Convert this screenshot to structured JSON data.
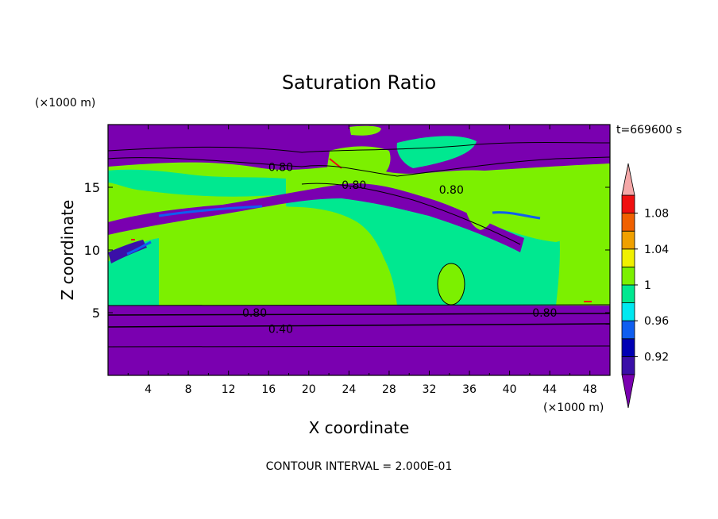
{
  "chart_data": {
    "type": "heatmap",
    "title": "Saturation Ratio",
    "xlabel": "X coordinate",
    "ylabel": "Z coordinate",
    "x_unit": "(×1000 m)",
    "y_unit": "(×1000 m)",
    "time_label": "t=669600 s",
    "footer": "CONTOUR INTERVAL = 2.000E-01",
    "xlim": [
      0,
      50
    ],
    "ylim": [
      0,
      20
    ],
    "x_ticks": [
      4,
      8,
      12,
      16,
      20,
      24,
      28,
      32,
      36,
      40,
      44,
      48
    ],
    "y_ticks": [
      5,
      10,
      15
    ],
    "contour_labels": [
      {
        "text": "0.80",
        "x": 17.2,
        "y": 16.6
      },
      {
        "text": "0.80",
        "x": 24.5,
        "y": 15.2
      },
      {
        "text": "0.80",
        "x": 34.2,
        "y": 14.8
      },
      {
        "text": "0.80",
        "x": 14.6,
        "y": 5.0
      },
      {
        "text": "0.80",
        "x": 43.5,
        "y": 5.0
      },
      {
        "text": "0.40",
        "x": 17.2,
        "y": 3.7
      }
    ],
    "colorbar": {
      "levels": [
        0.9,
        0.92,
        0.94,
        0.96,
        0.98,
        1.0,
        1.02,
        1.04,
        1.06,
        1.08,
        1.1
      ],
      "tick_labels": [
        "0.92",
        "0.96",
        "1",
        "1.04",
        "1.08"
      ],
      "tick_values": [
        0.92,
        0.96,
        1.0,
        1.04,
        1.08
      ],
      "colors": [
        "#3a0fa8",
        "#0000b4",
        "#0f5ef0",
        "#00e8f0",
        "#00e890",
        "#7cf000",
        "#f0f000",
        "#f0a000",
        "#f06000",
        "#f01010"
      ],
      "under_color": "#7a00b0",
      "over_color": "#f5a8a8"
    }
  }
}
